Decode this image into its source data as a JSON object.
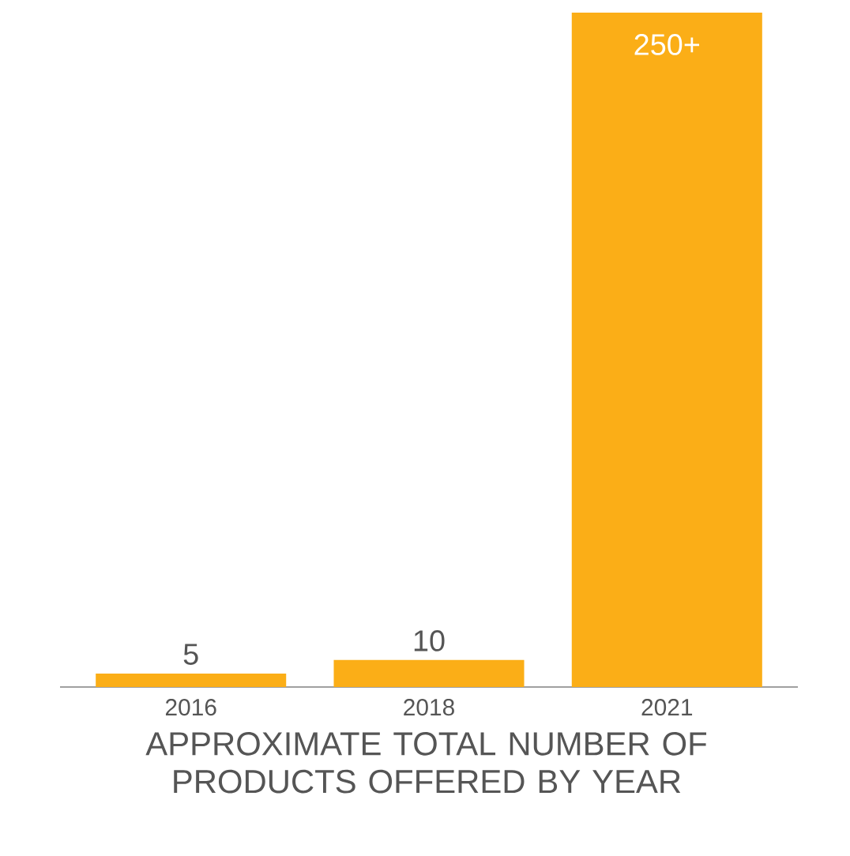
{
  "chart_data": {
    "type": "bar",
    "title": "APPROXIMATE TOTAL NUMBER OF PRODUCTS OFFERED BY YEAR",
    "categories": [
      "2016",
      "2018",
      "2021"
    ],
    "values": [
      5,
      10,
      250
    ],
    "value_labels": [
      "5",
      "10",
      "250+"
    ],
    "color": "#fbae17"
  }
}
